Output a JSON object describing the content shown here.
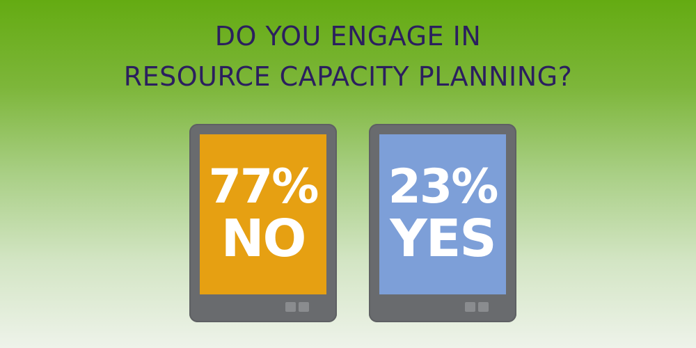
{
  "title": {
    "lines": [
      "DO YOU ENGAGE IN",
      "RESOURCE CAPACITY PLANNING?"
    ]
  },
  "cards": [
    {
      "value": "77%",
      "label": "NO"
    },
    {
      "value": "23%",
      "label": "YES"
    }
  ]
}
